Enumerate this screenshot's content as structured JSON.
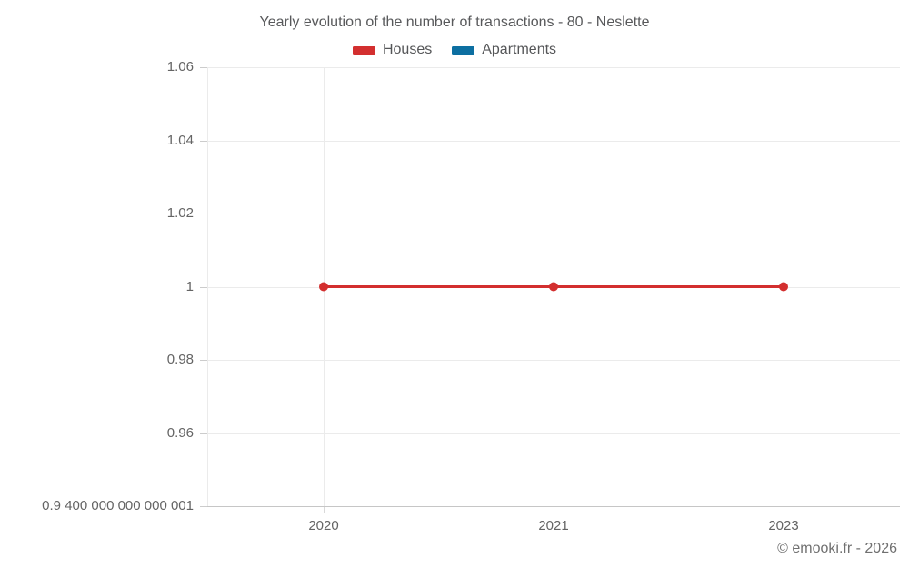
{
  "footer": "© emooki.fr - 2026",
  "legend": [
    {
      "label": "Houses",
      "color": "#d32f2f"
    },
    {
      "label": "Apartments",
      "color": "#0d6fa1"
    }
  ],
  "colors": {
    "grid": "#ebebeb",
    "axis_line": "#c6c6c6",
    "tick_mark": "#cccccc",
    "title_text": "#58595b",
    "tick_text": "#646464",
    "footer_text": "#707070"
  },
  "chart_data": {
    "type": "line",
    "title": "Yearly evolution of the number of transactions - 80 - Neslette",
    "x": [
      "2020",
      "2021",
      "2023"
    ],
    "series": [
      {
        "name": "Houses",
        "color": "#d32f2f",
        "values": [
          1,
          1,
          1
        ]
      },
      {
        "name": "Apartments",
        "color": "#0d6fa1",
        "values": [
          null,
          null,
          null
        ]
      }
    ],
    "xlabel": "",
    "ylabel": "",
    "ylim": [
      0.9400000000000001,
      1.06
    ],
    "yticks": [
      {
        "value": 1.06,
        "label": "1.06"
      },
      {
        "value": 1.04,
        "label": "1.04"
      },
      {
        "value": 1.02,
        "label": "1.02"
      },
      {
        "value": 1,
        "label": "1"
      },
      {
        "value": 0.98,
        "label": "0.98"
      },
      {
        "value": 0.96,
        "label": "0.96"
      },
      {
        "value": 0.9400000000000001,
        "label": "0.9 400 000 000 000 001"
      }
    ],
    "grid": true,
    "legend_position": "top"
  }
}
